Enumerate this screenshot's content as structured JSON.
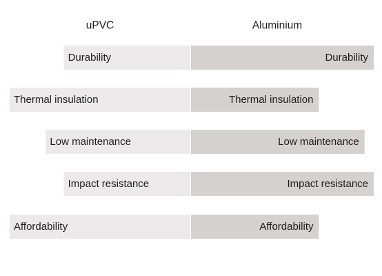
{
  "chart_data": {
    "type": "bar",
    "orientation": "horizontal-diverging",
    "categories": [
      "Durability",
      "Thermal insulation",
      "Low maintenance",
      "Impact resistance",
      "Affordability"
    ],
    "series": [
      {
        "name": "uPVC",
        "values": [
          7,
          10,
          8,
          7,
          10
        ],
        "color": "#ebe9e9"
      },
      {
        "name": "Aluminium",
        "values": [
          10,
          7,
          9.5,
          10,
          7
        ],
        "color": "#d6d1d1"
      }
    ],
    "xlim": [
      0,
      10
    ],
    "grid": false,
    "legend": "none"
  }
}
